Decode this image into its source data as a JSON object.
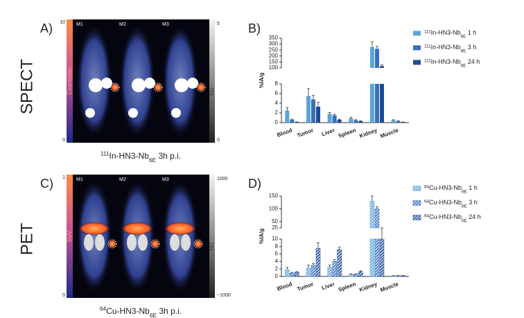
{
  "panels": {
    "a": "A)",
    "b": "B)",
    "c": "C)",
    "d": "D)"
  },
  "modalities": [
    "SPECT",
    "PET"
  ],
  "images": [
    {
      "mice": [
        "M1",
        "M2",
        "M3"
      ],
      "scale_left": [
        "10",
        "0"
      ],
      "scale_left_label": "Counts/sec",
      "scale_right": [
        "5",
        "0"
      ],
      "scale_right_label": "HU",
      "caption": "111In-HN3-Nb6E 3h p.i."
    },
    {
      "mice": [
        "M1",
        "M2",
        "M3"
      ],
      "scale_left": [
        "1",
        "0"
      ],
      "scale_left_label": "SUV",
      "scale_right": [
        "1000",
        "−1000"
      ],
      "scale_right_label": "HU",
      "caption": "64Cu-HN3-Nb6E 3h p.i."
    }
  ],
  "chart_data": [
    {
      "type": "bar",
      "y_label": "%IA/g",
      "hatch": false,
      "categories": [
        "Blood",
        "Tumor",
        "Liver",
        "Spleen",
        "Kidney",
        "Muscle"
      ],
      "ylim": [
        0,
        350
      ],
      "y_break": [
        8,
        100
      ],
      "yticks": [
        0,
        2,
        4,
        6,
        8,
        100,
        150,
        200,
        250,
        300,
        350
      ],
      "series": [
        {
          "name": "111In-HN3-Nb6E 1 h",
          "color": "#5aa4da",
          "values": [
            2.5,
            5.5,
            1.8,
            0.9,
            275,
            0.5
          ],
          "errors": [
            0.6,
            1.5,
            0.3,
            0.2,
            45,
            0.1
          ]
        },
        {
          "name": "111In-HN3-Nb6E 3 h",
          "color": "#3a6fbb",
          "values": [
            0.6,
            4.8,
            1.5,
            0.5,
            260,
            0.3
          ],
          "errors": [
            0.1,
            0.8,
            0.2,
            0.1,
            20,
            0.1
          ]
        },
        {
          "name": "111In-HN3-Nb6E 24 h",
          "color": "#1f4c94",
          "values": [
            0.1,
            3.3,
            0.6,
            0.3,
            115,
            0.1
          ],
          "errors": [
            0.05,
            0.9,
            0.1,
            0.1,
            10,
            0.05
          ]
        }
      ]
    },
    {
      "type": "bar",
      "y_label": "%IA/g",
      "hatch": true,
      "categories": [
        "Blood",
        "Tumor",
        "Liver",
        "Spleen",
        "Kidney",
        "Muscle"
      ],
      "ylim": [
        0,
        150
      ],
      "y_break": [
        10,
        25
      ],
      "yticks": [
        0,
        2,
        4,
        6,
        8,
        10,
        25,
        50,
        100,
        150
      ],
      "series": [
        {
          "name": "64Cu-HN3-Nb6E 1 h",
          "color": "#5aa4da",
          "values": [
            1.8,
            2.2,
            2.5,
            0.6,
            130,
            0.2
          ],
          "errors": [
            0.6,
            0.8,
            0.5,
            0.1,
            25,
            0.05
          ]
        },
        {
          "name": "64Cu-HN3-Nb6E 3 h",
          "color": "#3a6fbb",
          "values": [
            0.9,
            3.0,
            4.0,
            0.6,
            100,
            0.2
          ],
          "errors": [
            0.2,
            0.5,
            0.5,
            0.1,
            8,
            0.05
          ]
        },
        {
          "name": "64Cu-HN3-Nb6E 24 h",
          "color": "#1f4c94",
          "values": [
            1.1,
            7.5,
            7.2,
            1.3,
            20,
            0.2
          ],
          "errors": [
            0.2,
            1.5,
            0.6,
            0.2,
            2,
            0.05
          ]
        }
      ]
    }
  ]
}
